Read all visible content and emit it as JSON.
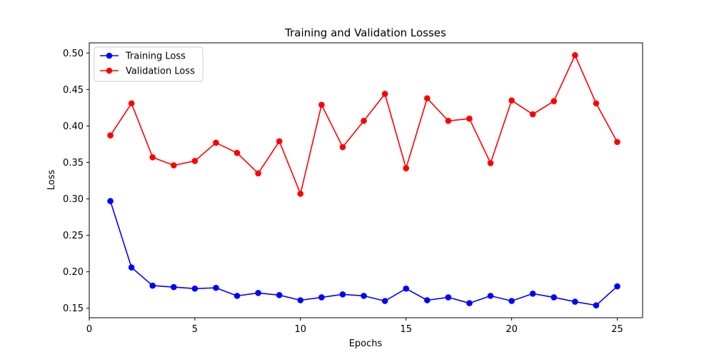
{
  "chart_data": {
    "type": "line",
    "title": "Training and Validation Losses",
    "xlabel": "Epochs",
    "ylabel": "Loss",
    "xlim": [
      0,
      26.2
    ],
    "ylim": [
      0.137,
      0.514
    ],
    "xticks": [
      0,
      5,
      10,
      15,
      20,
      25
    ],
    "yticks": [
      0.15,
      0.2,
      0.25,
      0.3,
      0.35,
      0.4,
      0.45,
      0.5
    ],
    "grid": false,
    "legend_position": "top-left",
    "x": [
      1,
      2,
      3,
      4,
      5,
      6,
      7,
      8,
      9,
      10,
      11,
      12,
      13,
      14,
      15,
      16,
      17,
      18,
      19,
      20,
      21,
      22,
      23,
      24,
      25
    ],
    "series": [
      {
        "name": "Training Loss",
        "color": "#0000ff",
        "marker": "circle",
        "values": [
          0.297,
          0.206,
          0.181,
          0.179,
          0.177,
          0.178,
          0.167,
          0.171,
          0.168,
          0.161,
          0.165,
          0.169,
          0.167,
          0.16,
          0.177,
          0.161,
          0.165,
          0.157,
          0.167,
          0.16,
          0.17,
          0.165,
          0.159,
          0.154,
          0.18
        ]
      },
      {
        "name": "Validation Loss",
        "color": "#ff0000",
        "marker": "circle",
        "values": [
          0.387,
          0.431,
          0.357,
          0.346,
          0.352,
          0.377,
          0.363,
          0.335,
          0.379,
          0.307,
          0.429,
          0.371,
          0.407,
          0.444,
          0.342,
          0.438,
          0.407,
          0.41,
          0.349,
          0.435,
          0.416,
          0.434,
          0.497,
          0.431,
          0.378
        ]
      }
    ]
  }
}
